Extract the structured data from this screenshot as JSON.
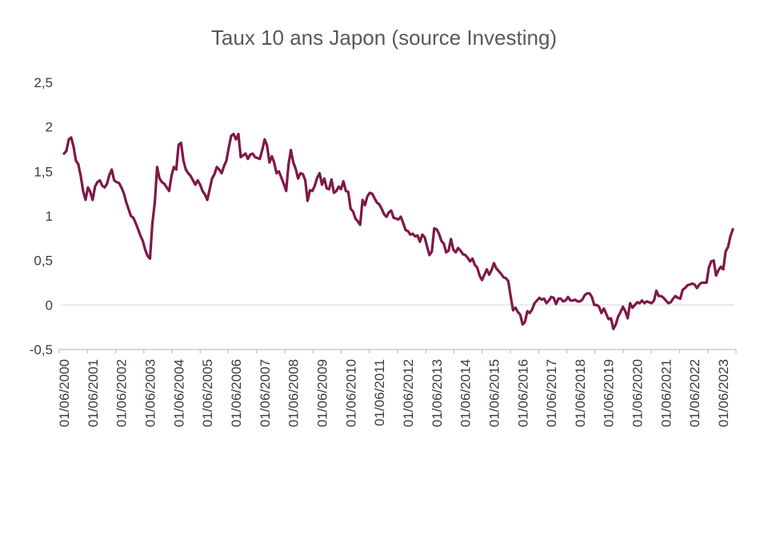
{
  "chart_data": {
    "type": "line",
    "title": "Taux 10 ans Japon (source Investing)",
    "xlabel": "",
    "ylabel": "",
    "ylim": [
      -0.5,
      2.5
    ],
    "grid": "horizontal-line-at-zero-and-baseline-only",
    "legend": "none",
    "line_color": "#7E1845",
    "grid_color": "#D9D9D9",
    "axis_color": "#BFBFBF",
    "title_color": "#595959",
    "tick_text_color": "#3b3b3b",
    "x_frequency": "monthly",
    "x_start": "01/06/2000",
    "x_end": "01/10/2023",
    "x_tick_labels": [
      "01/06/2000",
      "01/06/2001",
      "01/06/2002",
      "01/06/2003",
      "01/06/2004",
      "01/06/2005",
      "01/06/2006",
      "01/06/2007",
      "01/06/2008",
      "01/06/2009",
      "01/06/2010",
      "01/06/2011",
      "01/06/2012",
      "01/06/2013",
      "01/06/2014",
      "01/06/2015",
      "01/06/2016",
      "01/06/2017",
      "01/06/2018",
      "01/06/2019",
      "01/06/2020",
      "01/06/2021",
      "01/06/2022",
      "01/06/2023"
    ],
    "x_tick_month_interval": 12,
    "y_ticks": [
      {
        "value": 2.5,
        "label": "2,5"
      },
      {
        "value": 2,
        "label": "2"
      },
      {
        "value": 1.5,
        "label": "1,5"
      },
      {
        "value": 1,
        "label": "1"
      },
      {
        "value": 0.5,
        "label": "0,5"
      },
      {
        "value": 0,
        "label": "0"
      },
      {
        "value": -0.5,
        "label": "-0,5"
      }
    ],
    "series": [
      {
        "name": "Taux 10 ans Japon",
        "values": [
          1.7,
          1.73,
          1.86,
          1.88,
          1.78,
          1.62,
          1.58,
          1.45,
          1.28,
          1.18,
          1.32,
          1.27,
          1.18,
          1.33,
          1.38,
          1.4,
          1.34,
          1.32,
          1.36,
          1.46,
          1.52,
          1.4,
          1.38,
          1.37,
          1.32,
          1.26,
          1.16,
          1.08,
          1.0,
          0.98,
          0.92,
          0.85,
          0.78,
          0.72,
          0.62,
          0.55,
          0.52,
          0.92,
          1.15,
          1.55,
          1.42,
          1.38,
          1.36,
          1.32,
          1.28,
          1.45,
          1.55,
          1.52,
          1.8,
          1.82,
          1.62,
          1.52,
          1.48,
          1.45,
          1.4,
          1.35,
          1.4,
          1.35,
          1.28,
          1.24,
          1.18,
          1.3,
          1.42,
          1.47,
          1.55,
          1.52,
          1.48,
          1.56,
          1.62,
          1.77,
          1.9,
          1.92,
          1.86,
          1.92,
          1.66,
          1.68,
          1.7,
          1.64,
          1.69,
          1.7,
          1.66,
          1.65,
          1.64,
          1.74,
          1.86,
          1.79,
          1.6,
          1.67,
          1.6,
          1.48,
          1.5,
          1.43,
          1.36,
          1.28,
          1.58,
          1.74,
          1.6,
          1.53,
          1.42,
          1.48,
          1.47,
          1.4,
          1.17,
          1.29,
          1.28,
          1.34,
          1.43,
          1.48,
          1.35,
          1.42,
          1.31,
          1.3,
          1.41,
          1.26,
          1.28,
          1.33,
          1.3,
          1.39,
          1.28,
          1.27,
          1.08,
          1.05,
          0.97,
          0.94,
          0.9,
          1.18,
          1.12,
          1.22,
          1.26,
          1.25,
          1.2,
          1.15,
          1.13,
          1.08,
          1.02,
          0.99,
          1.04,
          1.06,
          0.98,
          0.97,
          0.96,
          0.99,
          0.92,
          0.84,
          0.83,
          0.79,
          0.8,
          0.77,
          0.78,
          0.71,
          0.79,
          0.76,
          0.66,
          0.56,
          0.6,
          0.86,
          0.85,
          0.8,
          0.72,
          0.69,
          0.59,
          0.61,
          0.74,
          0.62,
          0.59,
          0.64,
          0.61,
          0.57,
          0.56,
          0.53,
          0.49,
          0.52,
          0.45,
          0.42,
          0.33,
          0.28,
          0.34,
          0.4,
          0.34,
          0.39,
          0.47,
          0.41,
          0.38,
          0.35,
          0.31,
          0.3,
          0.27,
          0.1,
          -0.06,
          -0.03,
          -0.08,
          -0.11,
          -0.22,
          -0.19,
          -0.07,
          -0.09,
          -0.05,
          0.02,
          0.05,
          0.08,
          0.06,
          0.07,
          0.02,
          0.05,
          0.09,
          0.08,
          0.01,
          0.07,
          0.07,
          0.04,
          0.05,
          0.09,
          0.05,
          0.05,
          0.06,
          0.04,
          0.04,
          0.06,
          0.11,
          0.13,
          0.13,
          0.09,
          0.0,
          0.0,
          -0.02,
          -0.09,
          -0.04,
          -0.1,
          -0.16,
          -0.15,
          -0.27,
          -0.22,
          -0.13,
          -0.08,
          -0.02,
          -0.07,
          -0.15,
          0.02,
          -0.03,
          0.0,
          0.03,
          0.02,
          0.05,
          0.02,
          0.04,
          0.03,
          0.02,
          0.05,
          0.16,
          0.1,
          0.1,
          0.08,
          0.05,
          0.02,
          0.03,
          0.07,
          0.1,
          0.08,
          0.07,
          0.17,
          0.19,
          0.22,
          0.23,
          0.24,
          0.23,
          0.19,
          0.23,
          0.25,
          0.25,
          0.25,
          0.42,
          0.49,
          0.5,
          0.33,
          0.39,
          0.43,
          0.4,
          0.6,
          0.65,
          0.77,
          0.85
        ]
      }
    ]
  }
}
